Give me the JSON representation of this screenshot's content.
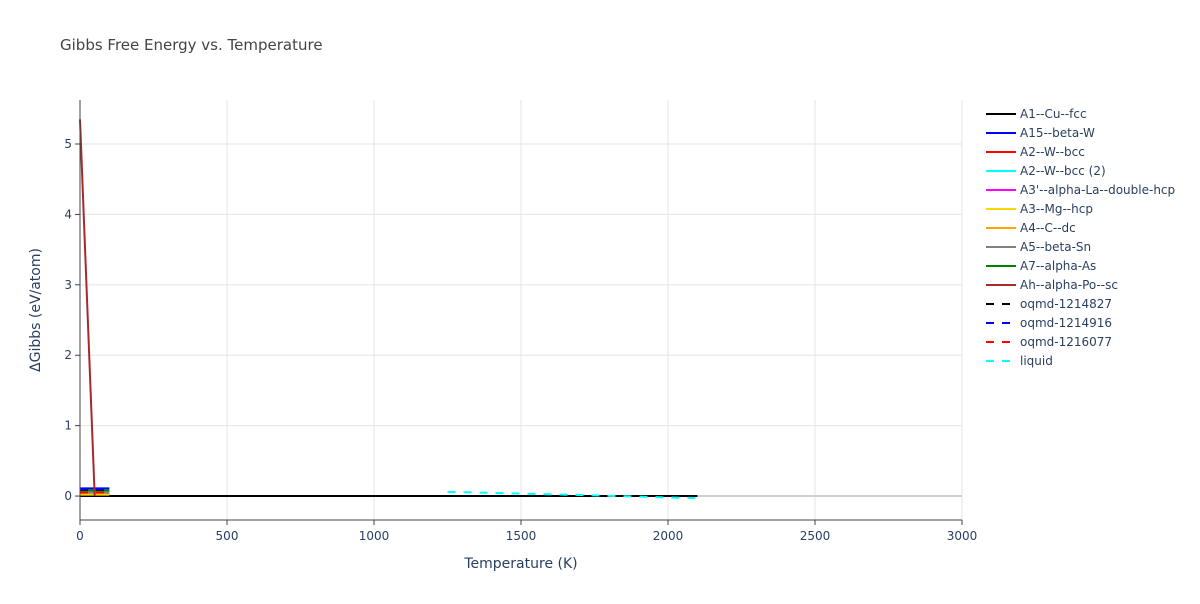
{
  "chart_data": {
    "type": "line",
    "title": "Gibbs Free Energy vs. Temperature",
    "x_label": "Temperature (K)",
    "y_label": "ΔGibbs (eV/atom)",
    "xlim": [
      0,
      3000
    ],
    "ylim": [
      -0.34,
      5.625
    ],
    "xticks": [
      0,
      500,
      1000,
      1500,
      2000,
      2500,
      3000
    ],
    "yticks": [
      0,
      1,
      2,
      3,
      4,
      5
    ],
    "grid": true,
    "legend": "right",
    "series": [
      {
        "name": "A1--Cu--fcc",
        "color": "#000000",
        "dash": false,
        "x": [
          0,
          2100
        ],
        "values": [
          0,
          0
        ]
      },
      {
        "name": "A15--beta-W",
        "color": "#0000ff",
        "dash": false,
        "x": [
          0,
          100
        ],
        "values": [
          0.11,
          0.11
        ]
      },
      {
        "name": "A2--W--bcc",
        "color": "#ff0000",
        "dash": false,
        "x": [
          0,
          100
        ],
        "values": [
          0.06,
          0.06
        ]
      },
      {
        "name": "A2--W--bcc (2)",
        "color": "#00ffff",
        "dash": false,
        "x": [
          0,
          100
        ],
        "values": [
          0.07,
          0.07
        ]
      },
      {
        "name": "A3'--alpha-La--double-hcp",
        "color": "#ff00ff",
        "dash": false,
        "x": [
          0,
          100
        ],
        "values": [
          0.03,
          0.03
        ]
      },
      {
        "name": "A3--Mg--hcp",
        "color": "#ffd700",
        "dash": false,
        "x": [
          0,
          100
        ],
        "values": [
          0.02,
          0.02
        ]
      },
      {
        "name": "A4--C--dc",
        "color": "#ffa500",
        "dash": false,
        "x": [
          0,
          100
        ],
        "values": [
          0.04,
          0.04
        ]
      },
      {
        "name": "A5--beta-Sn",
        "color": "#808080",
        "dash": false,
        "x": [
          0,
          100
        ],
        "values": [
          0.05,
          0.05
        ]
      },
      {
        "name": "A7--alpha-As",
        "color": "#008000",
        "dash": false,
        "x": [
          0,
          100
        ],
        "values": [
          0.08,
          0.08
        ]
      },
      {
        "name": "Ah--alpha-Po--sc",
        "color": "#a52a2a",
        "dash": false,
        "x": [
          0,
          50
        ],
        "values": [
          5.35,
          0
        ]
      },
      {
        "name": "oqmd-1214827",
        "color": "#000000",
        "dash": true,
        "x": [
          0,
          100
        ],
        "values": [
          0.09,
          0.09
        ]
      },
      {
        "name": "oqmd-1214916",
        "color": "#0000ff",
        "dash": true,
        "x": [
          0,
          100
        ],
        "values": [
          0.1,
          0.1
        ]
      },
      {
        "name": "oqmd-1216077",
        "color": "#ff0000",
        "dash": true,
        "x": [
          0,
          100
        ],
        "values": [
          0.05,
          0.05
        ]
      },
      {
        "name": "liquid",
        "color": "#00ffff",
        "dash": true,
        "x": [
          1250,
          1500,
          1750,
          2000,
          2100
        ],
        "values": [
          0.06,
          0.035,
          0.01,
          -0.02,
          -0.03
        ]
      }
    ]
  }
}
